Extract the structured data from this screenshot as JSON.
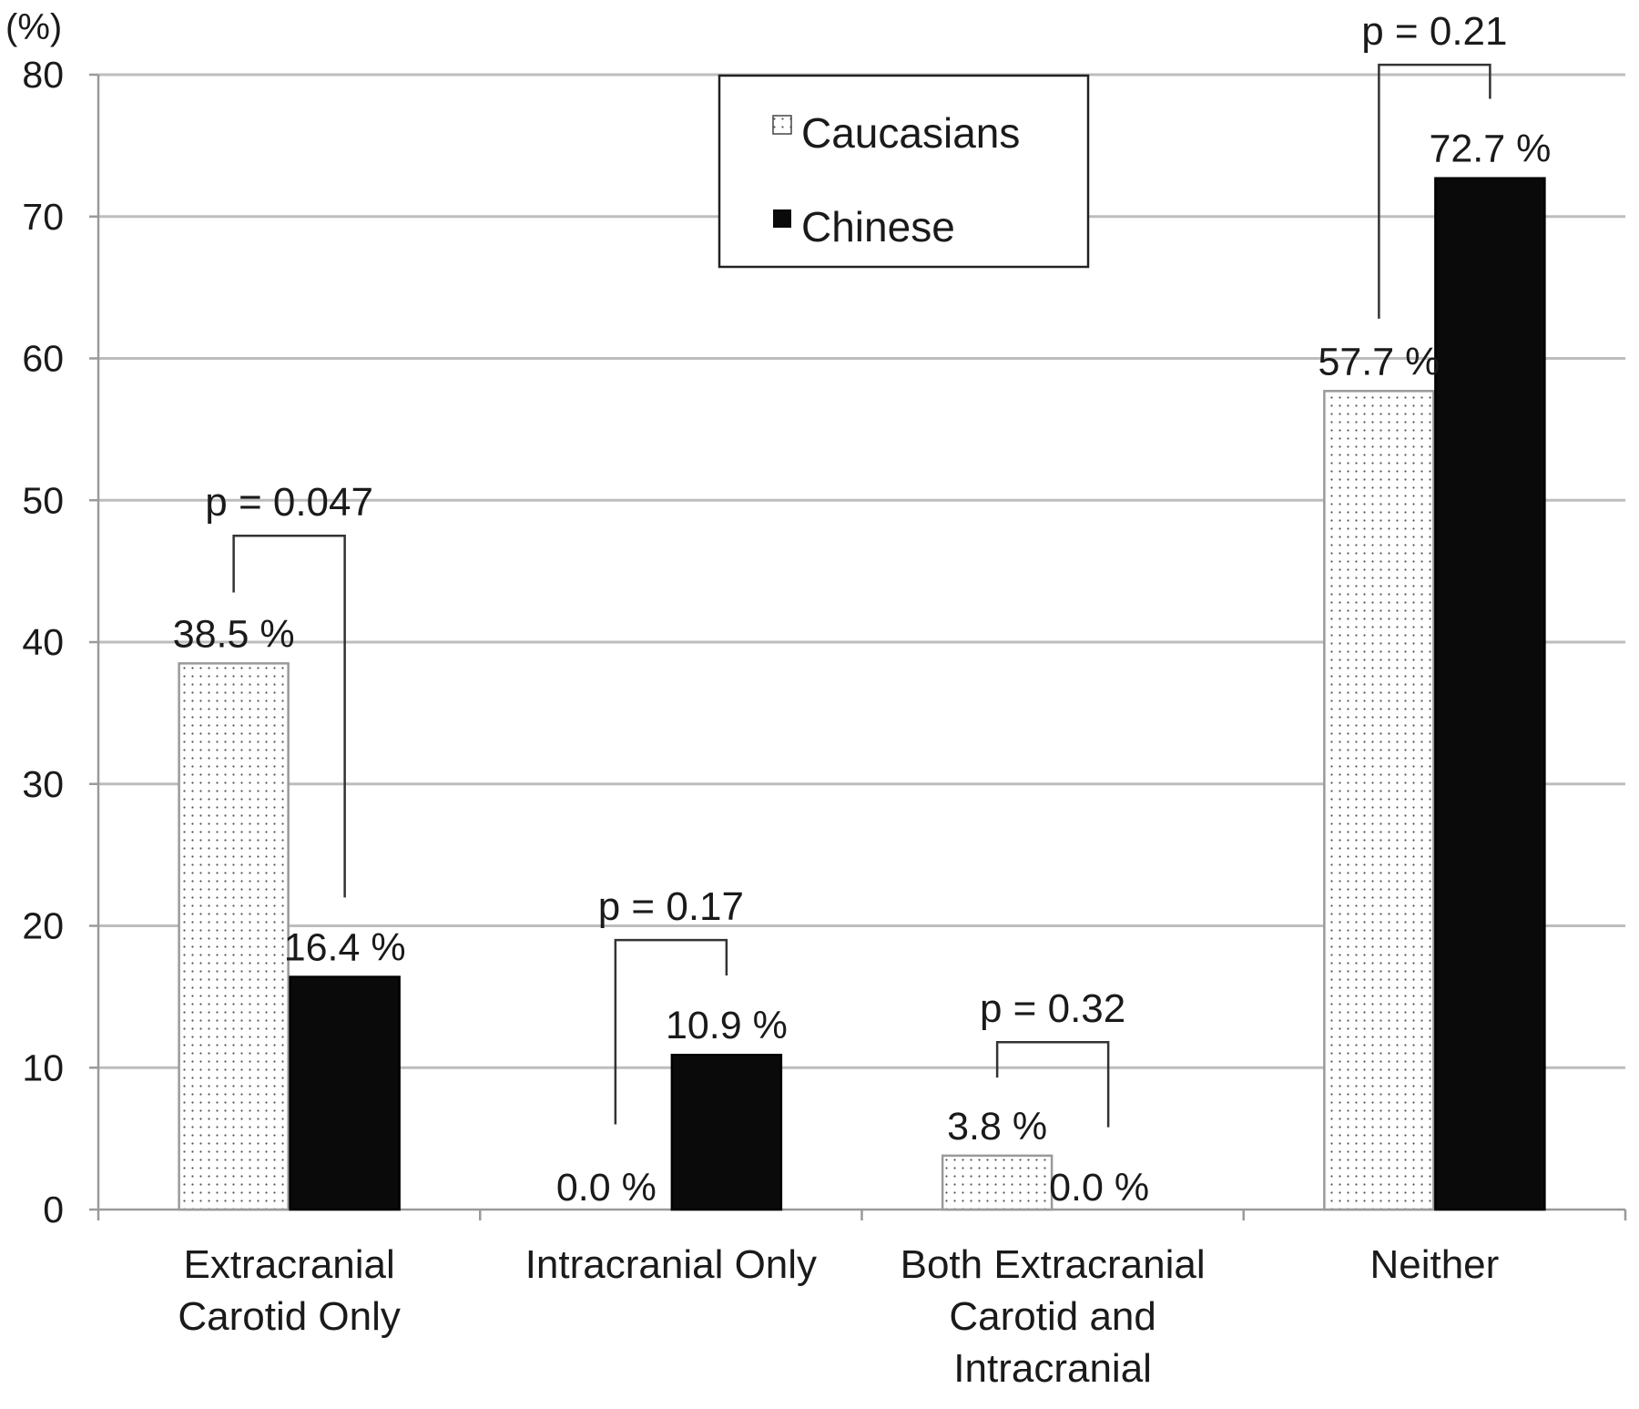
{
  "chart_data": {
    "type": "bar",
    "title": "",
    "ylabel": "(%)",
    "xlabel": "",
    "ylim": [
      0,
      80
    ],
    "yticks": [
      0,
      10,
      20,
      30,
      40,
      50,
      60,
      70,
      80
    ],
    "grid": true,
    "legend_position": "top-center",
    "categories": [
      [
        "Extracranial",
        "Carotid Only"
      ],
      [
        "Intracranial Only"
      ],
      [
        "Both Extracranial",
        "Carotid and",
        "Intracranial"
      ],
      [
        "Neither"
      ]
    ],
    "series": [
      {
        "name": "Caucasians",
        "pattern": "dotted",
        "fill": "#ffffff",
        "values": [
          38.5,
          0.0,
          3.8,
          57.7
        ],
        "labels": [
          "38.5 %",
          "0.0 %",
          "3.8 %",
          "57.7 %"
        ]
      },
      {
        "name": "Chinese",
        "pattern": "solid",
        "fill": "#0a0a0a",
        "values": [
          16.4,
          10.9,
          0.0,
          72.7
        ],
        "labels": [
          "16.4 %",
          "10.9 %",
          "0.0 %",
          "72.7 %"
        ]
      }
    ],
    "annotations": [
      {
        "text": "p = 0.047",
        "category": 0,
        "bracket_y": 47.5,
        "left_end": 43.5,
        "right_end": 22.0
      },
      {
        "text": "p = 0.17",
        "category": 1,
        "bracket_y": 19.0,
        "left_end": 6.0,
        "right_end": 16.5
      },
      {
        "text": "p = 0.32",
        "category": 2,
        "bracket_y": 11.8,
        "left_end": 9.3,
        "right_end": 5.8
      },
      {
        "text": "p = 0.21",
        "category": 3,
        "bracket_y": 80.7,
        "left_end": 62.8,
        "right_end": 78.3
      }
    ]
  }
}
